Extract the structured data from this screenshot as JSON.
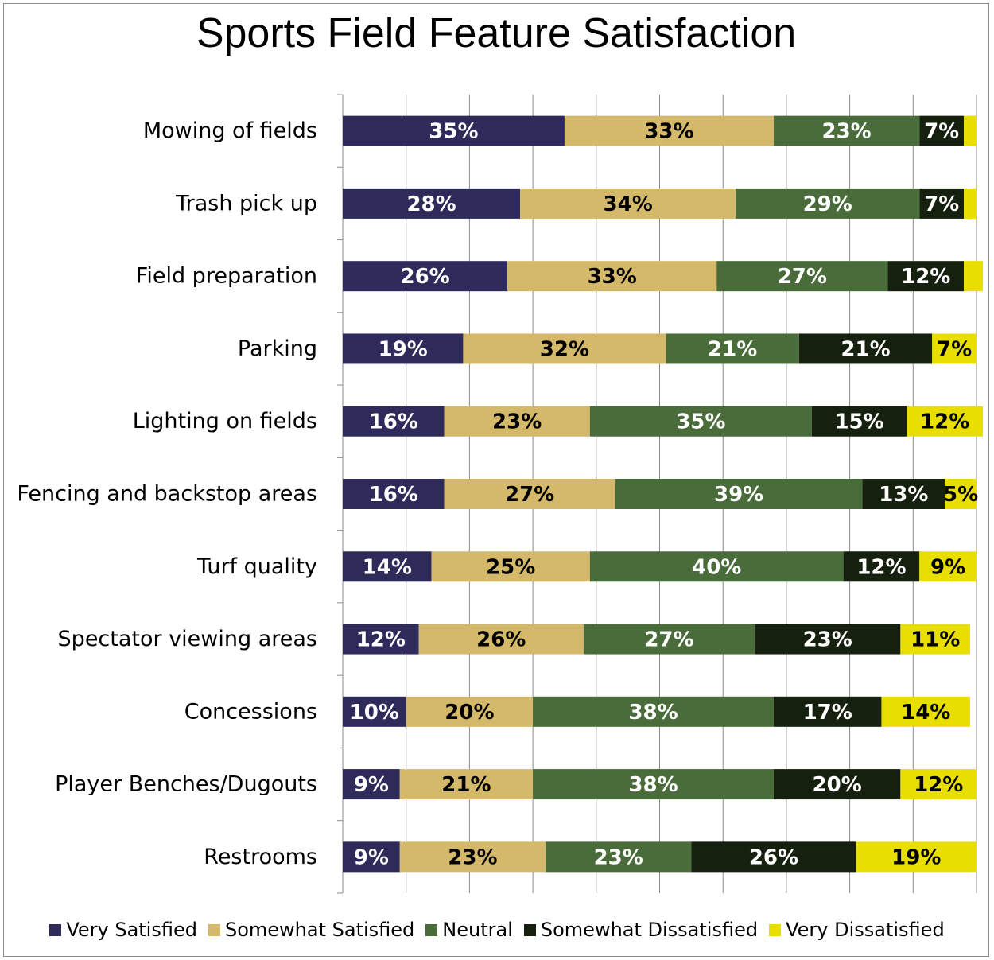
{
  "chart_data": {
    "type": "bar",
    "orientation": "horizontal",
    "stacked": true,
    "title": "Sports Field Feature Satisfaction",
    "xlim": [
      0,
      100
    ],
    "grid": true,
    "legend_position": "bottom",
    "categories": [
      "Mowing of fields",
      "Trash pick up",
      "Field preparation",
      "Parking",
      "Lighting on fields",
      "Fencing and backstop areas",
      "Turf quality",
      "Spectator viewing areas",
      "Concessions",
      "Player Benches/Dugouts",
      "Restrooms"
    ],
    "series": [
      {
        "name": "Very Satisfied",
        "color": "#2e2a5a",
        "label_color": "#ffffff",
        "values": [
          35,
          28,
          26,
          19,
          16,
          16,
          14,
          12,
          10,
          9,
          9
        ]
      },
      {
        "name": "Somewhat Satisfied",
        "color": "#d4b96a",
        "label_color": "#000000",
        "values": [
          33,
          34,
          33,
          32,
          23,
          27,
          25,
          26,
          20,
          21,
          23
        ]
      },
      {
        "name": "Neutral",
        "color": "#4a6b3a",
        "label_color": "#ffffff",
        "values": [
          23,
          29,
          27,
          21,
          35,
          39,
          40,
          27,
          38,
          38,
          23
        ]
      },
      {
        "name": "Somewhat Dissatisfied",
        "color": "#16200f",
        "label_color": "#ffffff",
        "values": [
          7,
          7,
          12,
          21,
          15,
          13,
          12,
          23,
          17,
          20,
          26
        ]
      },
      {
        "name": "Very Dissatisfied",
        "color": "#e8df00",
        "label_color": "#000000",
        "values": [
          2,
          2,
          3,
          7,
          12,
          5,
          9,
          11,
          14,
          12,
          19
        ],
        "labels": [
          "",
          "",
          "",
          "7%",
          "12%",
          "5%",
          "9%",
          "11%",
          "14%",
          "12%",
          "19%"
        ]
      }
    ]
  }
}
